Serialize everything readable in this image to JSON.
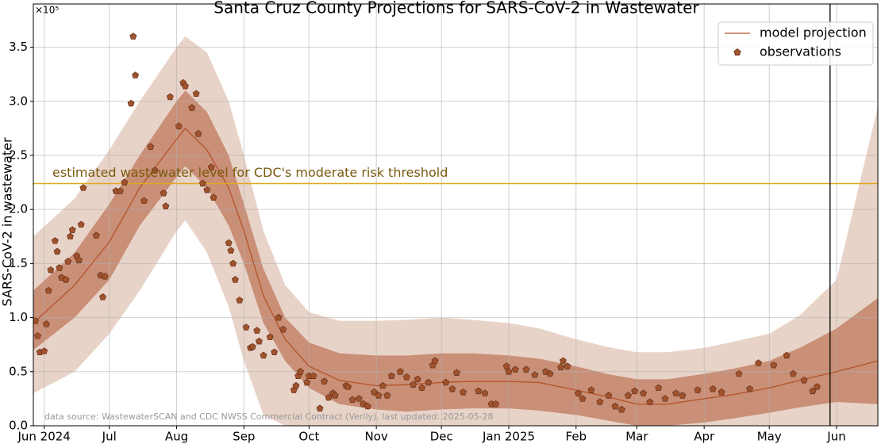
{
  "chart_data": {
    "type": "line",
    "title": "Santa Cruz County Projections for SARS-CoV-2 in Wastewater",
    "ylabel": "SARS-CoV-2 in wastewater",
    "y_offset_label": "×10⁵",
    "source_note": "data source: WastewaterSCAN and CDC NWSS Commercial Contract (Verily), last updated: 2025-05-28",
    "threshold": {
      "value": 2.24,
      "label": "estimated wastewater level for CDC's moderate risk threshold",
      "color": "#e0a820",
      "text_color": "#7a5a10"
    },
    "vline_x": 362,
    "grid": true,
    "legend": "upper right",
    "xlim": [
      -5,
      384
    ],
    "xticks": [
      {
        "value": 0,
        "label": "Jun 2024"
      },
      {
        "value": 30,
        "label": "Jul"
      },
      {
        "value": 61,
        "label": "Aug"
      },
      {
        "value": 92,
        "label": "Sep"
      },
      {
        "value": 122,
        "label": "Oct"
      },
      {
        "value": 153,
        "label": "Nov"
      },
      {
        "value": 183,
        "label": "Dec"
      },
      {
        "value": 214,
        "label": "Jan 2025"
      },
      {
        "value": 245,
        "label": "Feb"
      },
      {
        "value": 273,
        "label": "Mar"
      },
      {
        "value": 304,
        "label": "Apr"
      },
      {
        "value": 334,
        "label": "May"
      },
      {
        "value": 365,
        "label": "Jun"
      }
    ],
    "ylim": [
      0,
      3.9
    ],
    "yticks": [
      {
        "value": 0,
        "label": "0.0"
      },
      0.5,
      {
        "value": 1,
        "label": "1.0"
      },
      1.5,
      {
        "value": 2,
        "label": "2.0"
      },
      2.5,
      {
        "value": 3,
        "label": "3.0"
      },
      3.5
    ],
    "model": {
      "name": "model projection",
      "color": "#b5532a",
      "inner_color": "#c98f77",
      "outer_color": "#e8d3c8",
      "x": [
        -5,
        14,
        30,
        44,
        61,
        65,
        75,
        85,
        92,
        101,
        111,
        122,
        136,
        153,
        167,
        183,
        197,
        214,
        228,
        245,
        259,
        273,
        287,
        304,
        318,
        334,
        348,
        365,
        384
      ],
      "values": [
        0.95,
        1.3,
        1.7,
        2.2,
        2.65,
        2.75,
        2.55,
        2.2,
        1.8,
        1.2,
        0.8,
        0.55,
        0.42,
        0.37,
        0.38,
        0.4,
        0.41,
        0.41,
        0.4,
        0.33,
        0.27,
        0.2,
        0.2,
        0.25,
        0.29,
        0.35,
        0.42,
        0.5,
        0.6
      ],
      "inner_upper": [
        1.25,
        1.6,
        2.05,
        2.5,
        3.0,
        3.1,
        2.9,
        2.5,
        2.05,
        1.45,
        1.0,
        0.77,
        0.67,
        0.65,
        0.65,
        0.67,
        0.67,
        0.65,
        0.62,
        0.55,
        0.48,
        0.43,
        0.43,
        0.48,
        0.53,
        0.6,
        0.72,
        0.9,
        1.18
      ],
      "inner_lower": [
        0.7,
        1.0,
        1.35,
        1.85,
        2.3,
        2.4,
        2.2,
        1.85,
        1.5,
        0.95,
        0.6,
        0.35,
        0.2,
        0.15,
        0.13,
        0.15,
        0.16,
        0.16,
        0.14,
        0.1,
        0.05,
        0,
        0,
        0.03,
        0.07,
        0.12,
        0.17,
        0.22,
        0.2
      ],
      "outer_upper": [
        1.75,
        2.1,
        2.55,
        3.0,
        3.5,
        3.6,
        3.45,
        3.0,
        2.5,
        1.8,
        1.3,
        1.05,
        0.97,
        0.97,
        0.98,
        1.0,
        0.98,
        0.95,
        0.9,
        0.8,
        0.73,
        0.68,
        0.68,
        0.72,
        0.78,
        0.85,
        1.02,
        1.35,
        2.95
      ],
      "outer_lower": [
        0.3,
        0.5,
        0.85,
        1.25,
        1.8,
        1.9,
        1.6,
        1.1,
        0.6,
        0.1,
        0,
        0,
        0,
        0,
        0,
        0,
        0,
        0,
        0,
        0,
        0,
        0,
        0,
        0,
        0,
        0,
        0,
        0,
        0
      ]
    },
    "observations": {
      "name": "observations",
      "color": "#a0522d",
      "x": [
        -4,
        -3,
        -2,
        0,
        1,
        2,
        3,
        5,
        6,
        7,
        8,
        10,
        11,
        12,
        13,
        15,
        16,
        17,
        18,
        24,
        26,
        27,
        28,
        33,
        35,
        37,
        40,
        41,
        42,
        46,
        49,
        51,
        55,
        56,
        58,
        62,
        64,
        65,
        68,
        70,
        71,
        73,
        75,
        77,
        78,
        85,
        86,
        87,
        88,
        90,
        93,
        95,
        96,
        98,
        99,
        101,
        104,
        106,
        108,
        110,
        115,
        116,
        117,
        118,
        121,
        122,
        124,
        127,
        129,
        131,
        133,
        134,
        139,
        140,
        142,
        145,
        147,
        149,
        152,
        154,
        156,
        158,
        160,
        164,
        167,
        170,
        172,
        174,
        177,
        179,
        180,
        185,
        188,
        190,
        193,
        200,
        203,
        206,
        208,
        213,
        214,
        217,
        222,
        226,
        231,
        233,
        238,
        239,
        241,
        246,
        248,
        252,
        256,
        260,
        263,
        266,
        269,
        272,
        276,
        279,
        283,
        286,
        291,
        294,
        301,
        308,
        312,
        320,
        325,
        329,
        336,
        342,
        345,
        350,
        354,
        356
      ],
      "values": [
        0.97,
        0.83,
        0.68,
        0.69,
        0.94,
        1.25,
        1.44,
        1.71,
        1.61,
        1.46,
        1.37,
        1.35,
        1.52,
        1.75,
        1.81,
        1.57,
        1.53,
        1.86,
        2.2,
        1.76,
        1.39,
        1.19,
        1.38,
        2.17,
        2.17,
        2.25,
        2.98,
        3.6,
        3.24,
        2.08,
        2.58,
        2.36,
        2.15,
        2.03,
        3.04,
        2.77,
        3.17,
        3.14,
        2.94,
        3.07,
        2.7,
        2.24,
        2.18,
        2.39,
        2.11,
        1.69,
        1.62,
        1.5,
        1.35,
        1.16,
        0.91,
        0.72,
        0.73,
        0.88,
        0.78,
        0.65,
        0.82,
        0.68,
        1.0,
        0.89,
        0.33,
        0.37,
        0.46,
        0.5,
        0.4,
        0.46,
        0.46,
        0.16,
        0.41,
        0.26,
        0.3,
        0.28,
        0.37,
        0.36,
        0.24,
        0.25,
        0.2,
        0.18,
        0.31,
        0.28,
        0.37,
        0.28,
        0.46,
        0.5,
        0.45,
        0.38,
        0.43,
        0.35,
        0.4,
        0.56,
        0.6,
        0.4,
        0.34,
        0.49,
        0.31,
        0.32,
        0.3,
        0.2,
        0.2,
        0.55,
        0.5,
        0.52,
        0.52,
        0.47,
        0.5,
        0.48,
        0.54,
        0.6,
        0.55,
        0.3,
        0.25,
        0.33,
        0.22,
        0.28,
        0.18,
        0.15,
        0.28,
        0.32,
        0.3,
        0.22,
        0.35,
        0.25,
        0.3,
        0.28,
        0.33,
        0.34,
        0.31,
        0.48,
        0.34,
        0.58,
        0.56,
        0.65,
        0.48,
        0.42,
        0.32,
        0.36
      ]
    }
  }
}
